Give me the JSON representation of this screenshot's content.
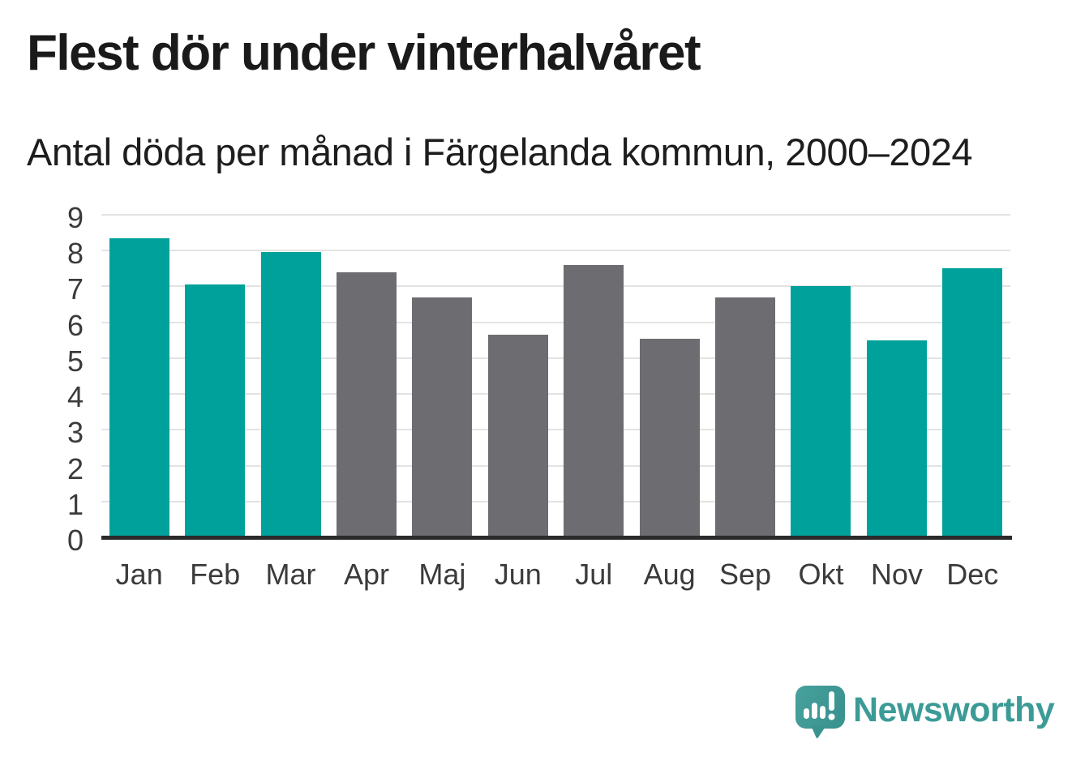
{
  "header": {
    "title": "Flest dör under vinterhalvåret",
    "subtitle": "Antal döda per månad i Färgelanda kommun, 2000–2024"
  },
  "chart_data": {
    "type": "bar",
    "title": "Flest dör under vinterhalvåret",
    "subtitle": "Antal döda per månad i Färgelanda kommun, 2000–2024",
    "categories": [
      "Jan",
      "Feb",
      "Mar",
      "Apr",
      "Maj",
      "Jun",
      "Jul",
      "Aug",
      "Sep",
      "Okt",
      "Nov",
      "Dec"
    ],
    "series": [
      {
        "name": "Antal döda per månad",
        "values": [
          8.35,
          7.05,
          7.95,
          7.4,
          6.7,
          5.65,
          7.6,
          5.55,
          6.7,
          7.0,
          5.5,
          7.5
        ]
      }
    ],
    "point_colors": [
      "#00a19a",
      "#00a19a",
      "#00a19a",
      "#6c6c71",
      "#6c6c71",
      "#6c6c71",
      "#6c6c71",
      "#6c6c71",
      "#6c6c71",
      "#00a19a",
      "#00a19a",
      "#00a19a"
    ],
    "xlabel": "",
    "ylabel": "",
    "ylim": [
      0,
      9
    ],
    "yticks": [
      0,
      1,
      2,
      3,
      4,
      5,
      6,
      7,
      8,
      9
    ],
    "grid": true,
    "legend": false,
    "highlight_color": "#00a19a",
    "base_color": "#6c6c71"
  },
  "colors": {
    "highlight_teal": "#00a19a",
    "neutral_gray": "#6c6c71",
    "gridline": "#e3e3e3",
    "axis_line": "#2b2b2b",
    "text_dark": "#1a1a1a",
    "tick_text": "#3b3b3b",
    "logo_teal": "#3c9b96"
  },
  "footer": {
    "logo_text": "Newsworthy"
  }
}
